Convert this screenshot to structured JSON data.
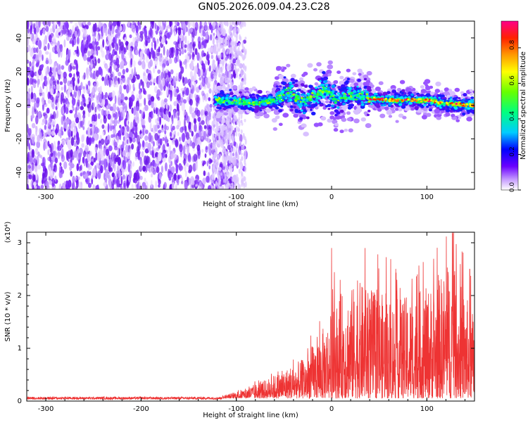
{
  "title": "GN05.2026.009.04.23.C28",
  "spectrogram": {
    "type": "heatmap",
    "xlabel": "Height of straight line (km)",
    "ylabel": "Frequency (Hz)",
    "xlim": [
      -320,
      150
    ],
    "ylim": [
      -50,
      50
    ],
    "xticks": [
      -300,
      -200,
      -100,
      0,
      100
    ],
    "yticks": [
      -40,
      -20,
      0,
      20,
      40
    ],
    "grid": false,
    "noise_region_x": [
      -320,
      -100
    ],
    "signal_ridge": [
      {
        "x": -120,
        "y": 3
      },
      {
        "x": -100,
        "y": 2
      },
      {
        "x": -80,
        "y": 1
      },
      {
        "x": -60,
        "y": 3
      },
      {
        "x": -45,
        "y": 8
      },
      {
        "x": -30,
        "y": 2
      },
      {
        "x": -20,
        "y": 5
      },
      {
        "x": -5,
        "y": 10
      },
      {
        "x": 5,
        "y": 3
      },
      {
        "x": 20,
        "y": 6
      },
      {
        "x": 40,
        "y": 4
      },
      {
        "x": 60,
        "y": 3
      },
      {
        "x": 80,
        "y": 3
      },
      {
        "x": 100,
        "y": 3
      },
      {
        "x": 120,
        "y": 1
      },
      {
        "x": 150,
        "y": 0
      }
    ],
    "colorbar": {
      "label": "Normalized spectral amplitude",
      "range": [
        0,
        0.95
      ],
      "ticks": [
        "0.0",
        "0.2",
        "0.4",
        "0.6",
        "0.8"
      ],
      "colors": [
        "#ffffff",
        "#9b4dff",
        "#0000ff",
        "#00e5ff",
        "#00ff3c",
        "#ffff00",
        "#ff7f00",
        "#ff0000",
        "#ff0080"
      ]
    }
  },
  "snr": {
    "type": "line",
    "xlabel": "Height of straight line (km)",
    "ylabel": "SNR (10 * v/v)",
    "yscale_label": "(x10⁴)",
    "xlim": [
      -320,
      150
    ],
    "ylim": [
      0,
      3.2
    ],
    "xticks": [
      -300,
      -200,
      -100,
      0,
      100
    ],
    "yticks": [
      0,
      1,
      2,
      3
    ],
    "color": "#ee3333",
    "envelope": [
      {
        "x": -320,
        "y": 0.06
      },
      {
        "x": -200,
        "y": 0.06
      },
      {
        "x": -110,
        "y": 0.07
      },
      {
        "x": -90,
        "y": 0.2
      },
      {
        "x": -70,
        "y": 0.35
      },
      {
        "x": -50,
        "y": 0.55
      },
      {
        "x": -30,
        "y": 0.75
      },
      {
        "x": -10,
        "y": 1.3
      },
      {
        "x": 10,
        "y": 2.0
      },
      {
        "x": 30,
        "y": 2.2
      },
      {
        "x": 50,
        "y": 2.0
      },
      {
        "x": 70,
        "y": 1.9
      },
      {
        "x": 90,
        "y": 2.0
      },
      {
        "x": 110,
        "y": 2.2
      },
      {
        "x": 125,
        "y": 2.6
      },
      {
        "x": 150,
        "y": 1.6
      }
    ],
    "peaks": [
      {
        "x": 0,
        "y": 2.9
      },
      {
        "x": 35,
        "y": 2.9
      },
      {
        "x": 90,
        "y": 2.4
      },
      {
        "x": 128,
        "y": 3.2
      },
      {
        "x": 145,
        "y": 2.5
      }
    ]
  }
}
